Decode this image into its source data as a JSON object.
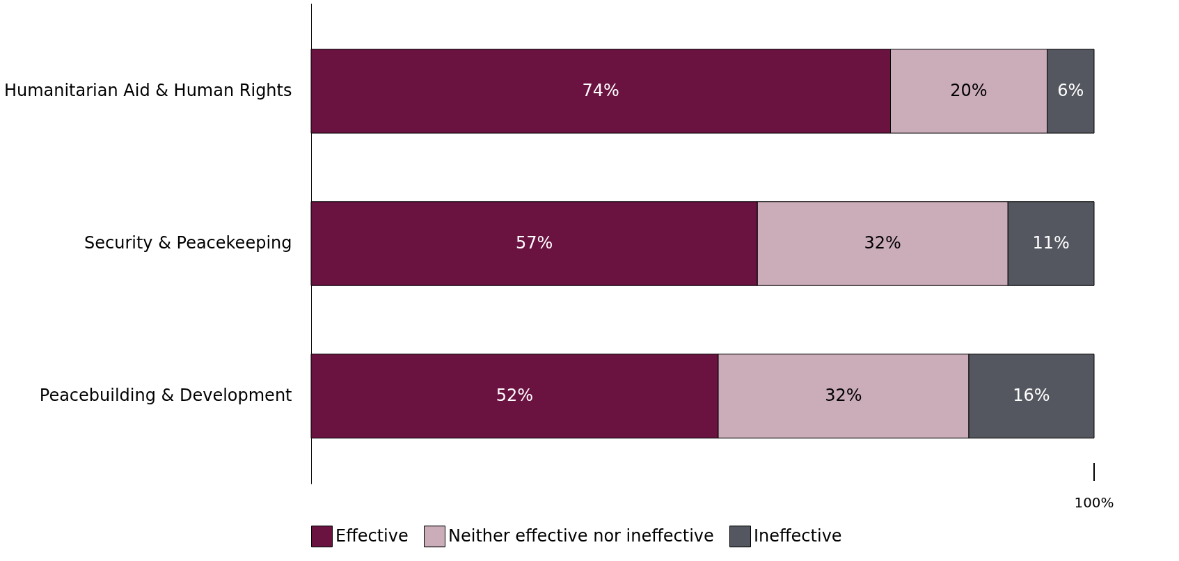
{
  "chart_data": {
    "type": "bar",
    "orientation": "horizontal",
    "stacked": true,
    "legend": "bottom",
    "categories": [
      "Humanitarian Aid & Human Rights",
      "Security & Peacekeeping",
      "Peacebuilding & Development"
    ],
    "series": [
      {
        "name": "Effective",
        "color": "#6a1240",
        "values": [
          74,
          57,
          52
        ],
        "value_labels": [
          "74%",
          "57%",
          "52%"
        ]
      },
      {
        "name": "Neither effective nor ineffective",
        "color": "#cbacb9",
        "values": [
          20,
          32,
          32
        ],
        "value_labels": [
          "20%",
          "32%",
          "32%"
        ]
      },
      {
        "name": "Ineffective",
        "color": "#555760",
        "values": [
          6,
          11,
          16
        ],
        "value_labels": [
          "6%",
          "11%",
          "16%"
        ]
      }
    ],
    "annotations": [
      {
        "text": "100%",
        "x": 100
      }
    ]
  }
}
